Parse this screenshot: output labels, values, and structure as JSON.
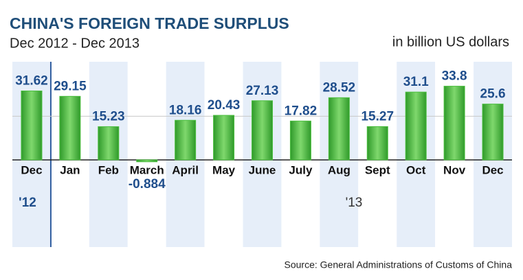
{
  "chart_data": {
    "type": "bar",
    "title": "CHINA'S FOREIGN TRADE SURPLUS",
    "subtitle": "Dec 2012 - Dec 2013",
    "unit_label": "in billion US dollars",
    "source": "Source: General Administrations of Customs of China",
    "annotations": [
      "'12",
      "'13"
    ],
    "categories": [
      "Dec",
      "Jan",
      "Feb",
      "March",
      "April",
      "May",
      "June",
      "July",
      "Aug",
      "Sept",
      "Oct",
      "Nov",
      "Dec"
    ],
    "values": [
      31.62,
      29.15,
      15.23,
      -0.884,
      18.16,
      20.43,
      27.13,
      17.82,
      28.52,
      15.27,
      31.1,
      33.8,
      25.6
    ],
    "color": "#4cbf3f",
    "ylim": [
      -40,
      45
    ],
    "grid_lines": [
      0,
      20
    ],
    "grid": true
  }
}
